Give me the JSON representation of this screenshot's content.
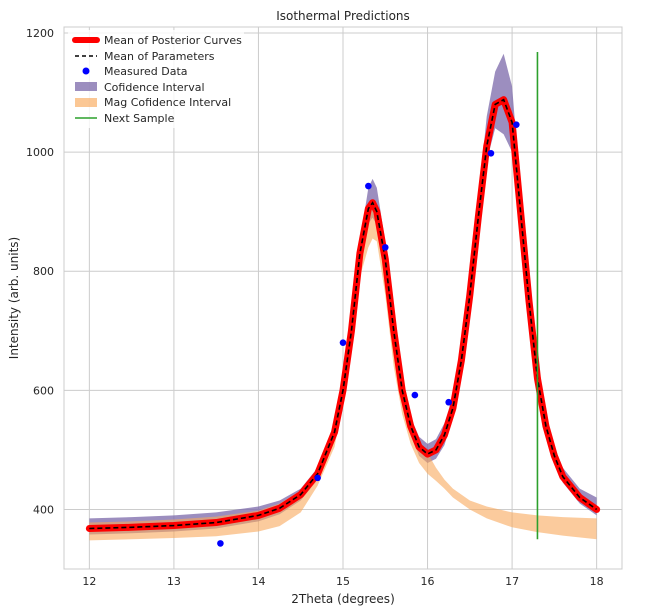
{
  "chart_data": {
    "type": "line",
    "title": "Isothermal Predictions",
    "xlabel": "2Theta (degrees)",
    "ylabel": "Intensity (arb. units)",
    "xlim": [
      11.7,
      18.3
    ],
    "ylim": [
      300,
      1210
    ],
    "xticks": [
      12,
      13,
      14,
      15,
      16,
      17,
      18
    ],
    "yticks": [
      400,
      600,
      800,
      1000,
      1200
    ],
    "grid": true,
    "legend": {
      "placement": "top-left",
      "entries": [
        {
          "label": "Mean of Posterior Curves",
          "kind": "thick-line",
          "color": "#ff0000"
        },
        {
          "label": "Mean of Parameters",
          "kind": "dashed-line",
          "color": "#000000"
        },
        {
          "label": "Measured Data",
          "kind": "marker",
          "color": "#0000ff"
        },
        {
          "label": "Cofidence Interval",
          "kind": "patch",
          "color": "#7b68aa"
        },
        {
          "label": "Mag Cofidence Interval",
          "kind": "patch",
          "color": "#f9a95b"
        },
        {
          "label": "Next Sample",
          "kind": "line",
          "color": "#2ca02c"
        }
      ]
    },
    "series": [
      {
        "name": "Mean of Posterior Curves",
        "color": "#ff0000",
        "x": [
          12.0,
          12.5,
          13.0,
          13.5,
          14.0,
          14.25,
          14.5,
          14.7,
          14.9,
          15.0,
          15.1,
          15.2,
          15.3,
          15.35,
          15.4,
          15.5,
          15.6,
          15.7,
          15.8,
          15.9,
          16.0,
          16.1,
          16.2,
          16.3,
          16.4,
          16.5,
          16.6,
          16.7,
          16.8,
          16.9,
          17.0,
          17.1,
          17.2,
          17.3,
          17.4,
          17.5,
          17.6,
          17.8,
          18.0
        ],
        "y": [
          368,
          370,
          373,
          378,
          390,
          402,
          425,
          460,
          530,
          600,
          700,
          830,
          905,
          915,
          900,
          820,
          700,
          600,
          540,
          505,
          493,
          500,
          525,
          570,
          650,
          760,
          890,
          1010,
          1080,
          1088,
          1050,
          900,
          750,
          620,
          540,
          490,
          455,
          420,
          400
        ]
      },
      {
        "name": "Mean of Parameters",
        "color": "#000000",
        "x": [
          12.0,
          12.5,
          13.0,
          13.5,
          14.0,
          14.25,
          14.5,
          14.7,
          14.9,
          15.0,
          15.1,
          15.2,
          15.3,
          15.35,
          15.4,
          15.5,
          15.6,
          15.7,
          15.8,
          15.9,
          16.0,
          16.1,
          16.2,
          16.3,
          16.4,
          16.5,
          16.6,
          16.7,
          16.8,
          16.9,
          17.0,
          17.1,
          17.2,
          17.3,
          17.4,
          17.5,
          17.6,
          17.8,
          18.0
        ],
        "y": [
          368,
          370,
          373,
          378,
          390,
          402,
          425,
          460,
          530,
          600,
          700,
          830,
          905,
          915,
          900,
          820,
          700,
          600,
          540,
          505,
          493,
          500,
          525,
          570,
          650,
          760,
          890,
          1010,
          1080,
          1088,
          1050,
          900,
          750,
          620,
          540,
          490,
          455,
          420,
          400
        ]
      }
    ],
    "confidence_interval": {
      "name": "Cofidence Interval",
      "color": "#7b68aa",
      "x": [
        12.0,
        12.5,
        13.0,
        13.5,
        14.0,
        14.25,
        14.5,
        14.7,
        14.9,
        15.0,
        15.1,
        15.2,
        15.3,
        15.35,
        15.4,
        15.5,
        15.6,
        15.7,
        15.8,
        15.9,
        16.0,
        16.1,
        16.2,
        16.3,
        16.4,
        16.5,
        16.6,
        16.7,
        16.8,
        16.9,
        17.0,
        17.1,
        17.2,
        17.3,
        17.4,
        17.5,
        17.6,
        17.8,
        18.0
      ],
      "lower": [
        358,
        360,
        363,
        368,
        380,
        392,
        415,
        450,
        520,
        590,
        685,
        810,
        880,
        890,
        878,
        805,
        690,
        590,
        528,
        490,
        478,
        485,
        508,
        555,
        635,
        745,
        870,
        985,
        1040,
        1030,
        1000,
        870,
        730,
        605,
        528,
        478,
        445,
        410,
        390
      ],
      "upper": [
        385,
        387,
        390,
        395,
        405,
        415,
        435,
        470,
        545,
        612,
        718,
        850,
        940,
        955,
        940,
        850,
        720,
        612,
        555,
        522,
        510,
        518,
        545,
        590,
        670,
        780,
        920,
        1060,
        1135,
        1165,
        1110,
        935,
        770,
        640,
        555,
        505,
        470,
        435,
        420
      ]
    },
    "mag_confidence_interval": {
      "name": "Mag Cofidence Interval",
      "color": "#f9a95b",
      "x": [
        12.0,
        12.5,
        13.0,
        13.5,
        14.0,
        14.25,
        14.5,
        14.7,
        14.9,
        15.0,
        15.1,
        15.2,
        15.3,
        15.35,
        15.4,
        15.5,
        15.6,
        15.7,
        15.8,
        15.9,
        16.0,
        16.1,
        16.2,
        16.3,
        16.5,
        16.7,
        17.0,
        17.3,
        17.6,
        18.0
      ],
      "lower": [
        348,
        350,
        352,
        355,
        363,
        372,
        395,
        440,
        505,
        580,
        690,
        790,
        840,
        855,
        850,
        760,
        640,
        560,
        510,
        478,
        460,
        448,
        435,
        420,
        400,
        385,
        370,
        362,
        356,
        350
      ],
      "upper": [
        378,
        380,
        383,
        388,
        398,
        410,
        432,
        468,
        535,
        610,
        720,
        840,
        895,
        905,
        890,
        790,
        665,
        590,
        545,
        515,
        495,
        470,
        450,
        435,
        415,
        405,
        395,
        390,
        387,
        385
      ]
    },
    "measured_data": {
      "name": "Measured Data",
      "color": "#0000ff",
      "points": [
        {
          "x": 13.55,
          "y": 343
        },
        {
          "x": 14.7,
          "y": 453
        },
        {
          "x": 15.0,
          "y": 680
        },
        {
          "x": 15.3,
          "y": 943
        },
        {
          "x": 15.5,
          "y": 840
        },
        {
          "x": 15.85,
          "y": 592
        },
        {
          "x": 16.25,
          "y": 580
        },
        {
          "x": 16.75,
          "y": 998
        },
        {
          "x": 17.05,
          "y": 1046
        }
      ]
    },
    "next_sample": {
      "name": "Next Sample",
      "color": "#2ca02c",
      "x": 17.3,
      "y_range": [
        350,
        1168
      ]
    }
  }
}
